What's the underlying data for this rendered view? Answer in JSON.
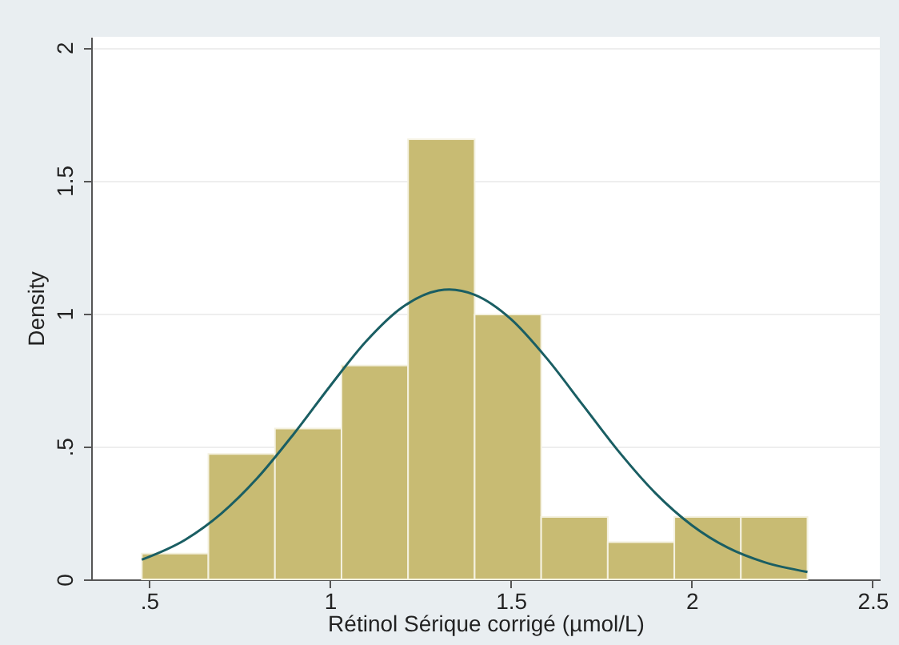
{
  "chart_data": {
    "type": "histogram",
    "xlabel": "Rétinol Sérique corrigé (µmol/L)",
    "ylabel": "Density",
    "bins": [
      0.48,
      0.664,
      0.848,
      1.032,
      1.216,
      1.4,
      1.584,
      1.768,
      1.952,
      2.136,
      2.32
    ],
    "values": [
      0.097,
      0.472,
      0.567,
      0.804,
      1.655,
      0.996,
      0.235,
      0.14,
      0.235,
      0.235
    ],
    "color": "#c8bb73",
    "series": [
      {
        "type": "line",
        "color": "#1a5e63",
        "x": [
          0.48,
          0.6,
          0.7,
          0.8,
          0.9,
          1.0,
          1.1,
          1.2,
          1.3,
          1.33,
          1.4,
          1.5,
          1.6,
          1.7,
          1.8,
          1.9,
          2.0,
          2.1,
          2.2,
          2.32
        ],
        "values": [
          0.074,
          0.149,
          0.248,
          0.382,
          0.547,
          0.726,
          0.895,
          1.023,
          1.086,
          1.09,
          1.07,
          0.979,
          0.83,
          0.654,
          0.478,
          0.324,
          0.204,
          0.119,
          0.065,
          0.028
        ]
      }
    ],
    "xlim": [
      0.34,
      2.52
    ],
    "ylim": [
      0,
      2.04
    ],
    "xticks": [
      {
        "value": 0.5,
        "label": ".5"
      },
      1,
      1.5,
      2,
      2.5
    ],
    "yticks": [
      0,
      {
        "value": 0.5,
        "label": ".5"
      },
      1,
      1.5,
      2
    ],
    "grid": "y"
  }
}
